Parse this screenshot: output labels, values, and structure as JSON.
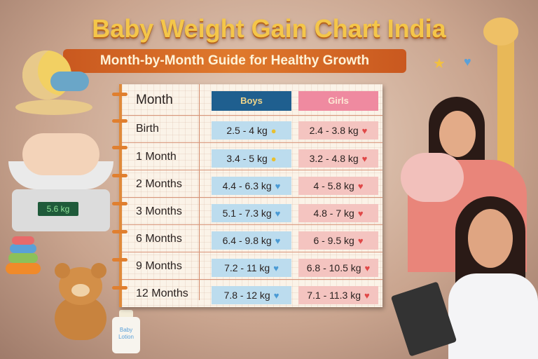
{
  "header": {
    "title": "Baby Weight Gain Chart India",
    "subtitle": "Month-by-Month Guide for Healthy Growth"
  },
  "table": {
    "columns": [
      "Month",
      "Boys",
      "Girls"
    ],
    "rows": [
      {
        "month": "Birth",
        "boys": "2.5 - 4 kg",
        "girls": "2.4 - 3.8 kg",
        "boys_icon": "coins-icon"
      },
      {
        "month": "1 Month",
        "boys": "3.4 - 5 kg",
        "girls": "3.2 - 4.8 kg",
        "boys_icon": "coins-icon"
      },
      {
        "month": "2 Months",
        "boys": "4.4 - 6.3 kg",
        "girls": "4 - 5.8 kg",
        "boys_icon": "heart-icon"
      },
      {
        "month": "3 Months",
        "boys": "5.1 - 7.3 kg",
        "girls": "4.8 - 7 kg",
        "boys_icon": "heart-icon"
      },
      {
        "month": "6 Months",
        "boys": "6.4 - 9.8 kg",
        "girls": "6 - 9.5 kg",
        "boys_icon": "heart-icon"
      },
      {
        "month": "9 Months",
        "boys": "7.2 - 11 kg",
        "girls": "6.8 - 10.5 kg",
        "boys_icon": "heart-icon"
      },
      {
        "month": "12 Months",
        "boys": "7.8 - 12 kg",
        "girls": "7.1 - 11.3 kg",
        "boys_icon": "heart-icon"
      }
    ]
  },
  "illustrations": {
    "scale_reading": "5.6 kg",
    "lotion_label": "Baby Lotion"
  },
  "colors": {
    "boys_header": "#1f5f8f",
    "girls_header": "#ef8aa0",
    "boys_cell": "#bcdcee",
    "girls_cell": "#f4c4c0",
    "title": "#f4c64a",
    "accent": "#e07f2f"
  }
}
